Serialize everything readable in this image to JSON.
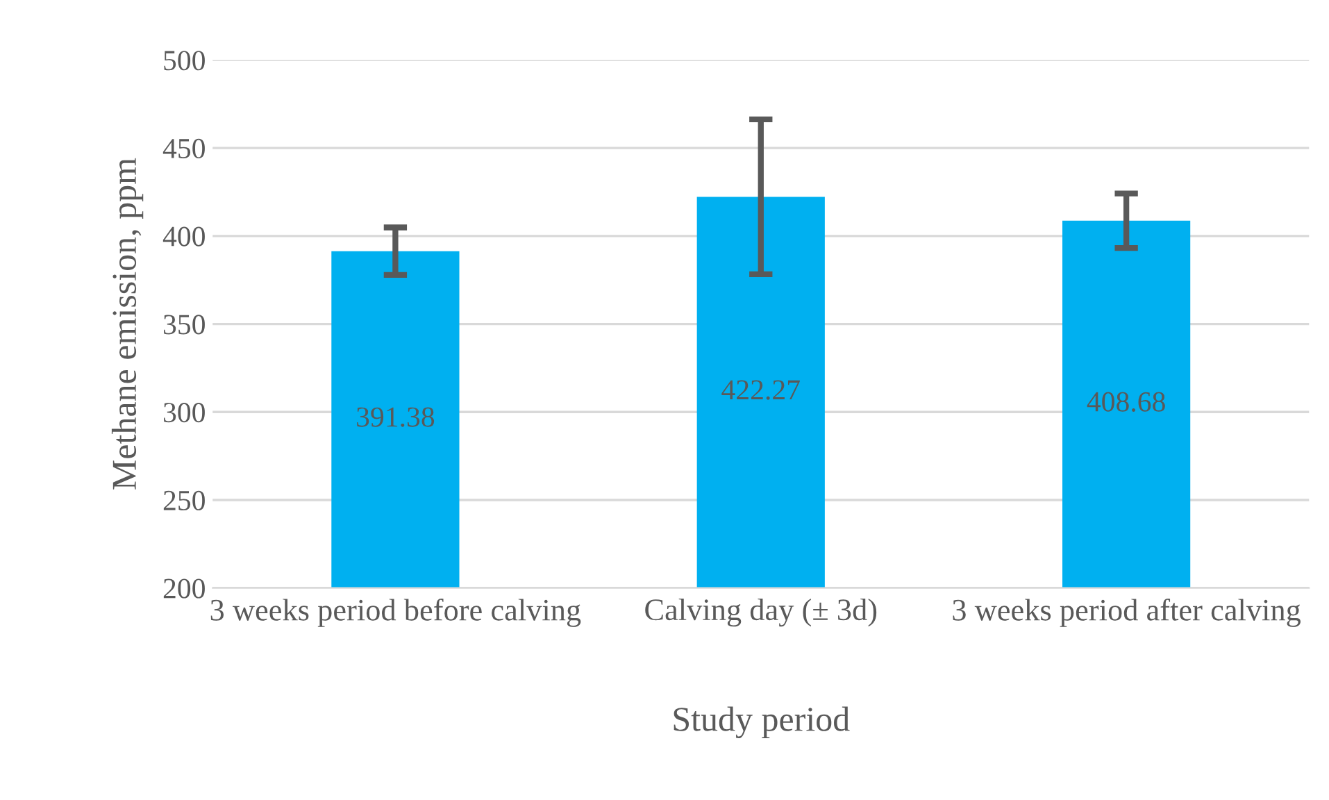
{
  "chart_data": {
    "type": "bar",
    "xlabel": "Study period",
    "ylabel": "Methane emission, ppm",
    "categories": [
      "3 weeks period before calving",
      "Calving day (± 3d)",
      "3 weeks period after calving"
    ],
    "values": [
      391.38,
      422.27,
      408.68
    ],
    "errors": [
      13.5,
      44,
      15.5
    ],
    "color": "#00b0f0",
    "data_labels": true,
    "ylim": [
      200,
      500
    ],
    "yticks": [
      200,
      250,
      300,
      350,
      400,
      450,
      500
    ],
    "grid": "y",
    "legend": false
  }
}
